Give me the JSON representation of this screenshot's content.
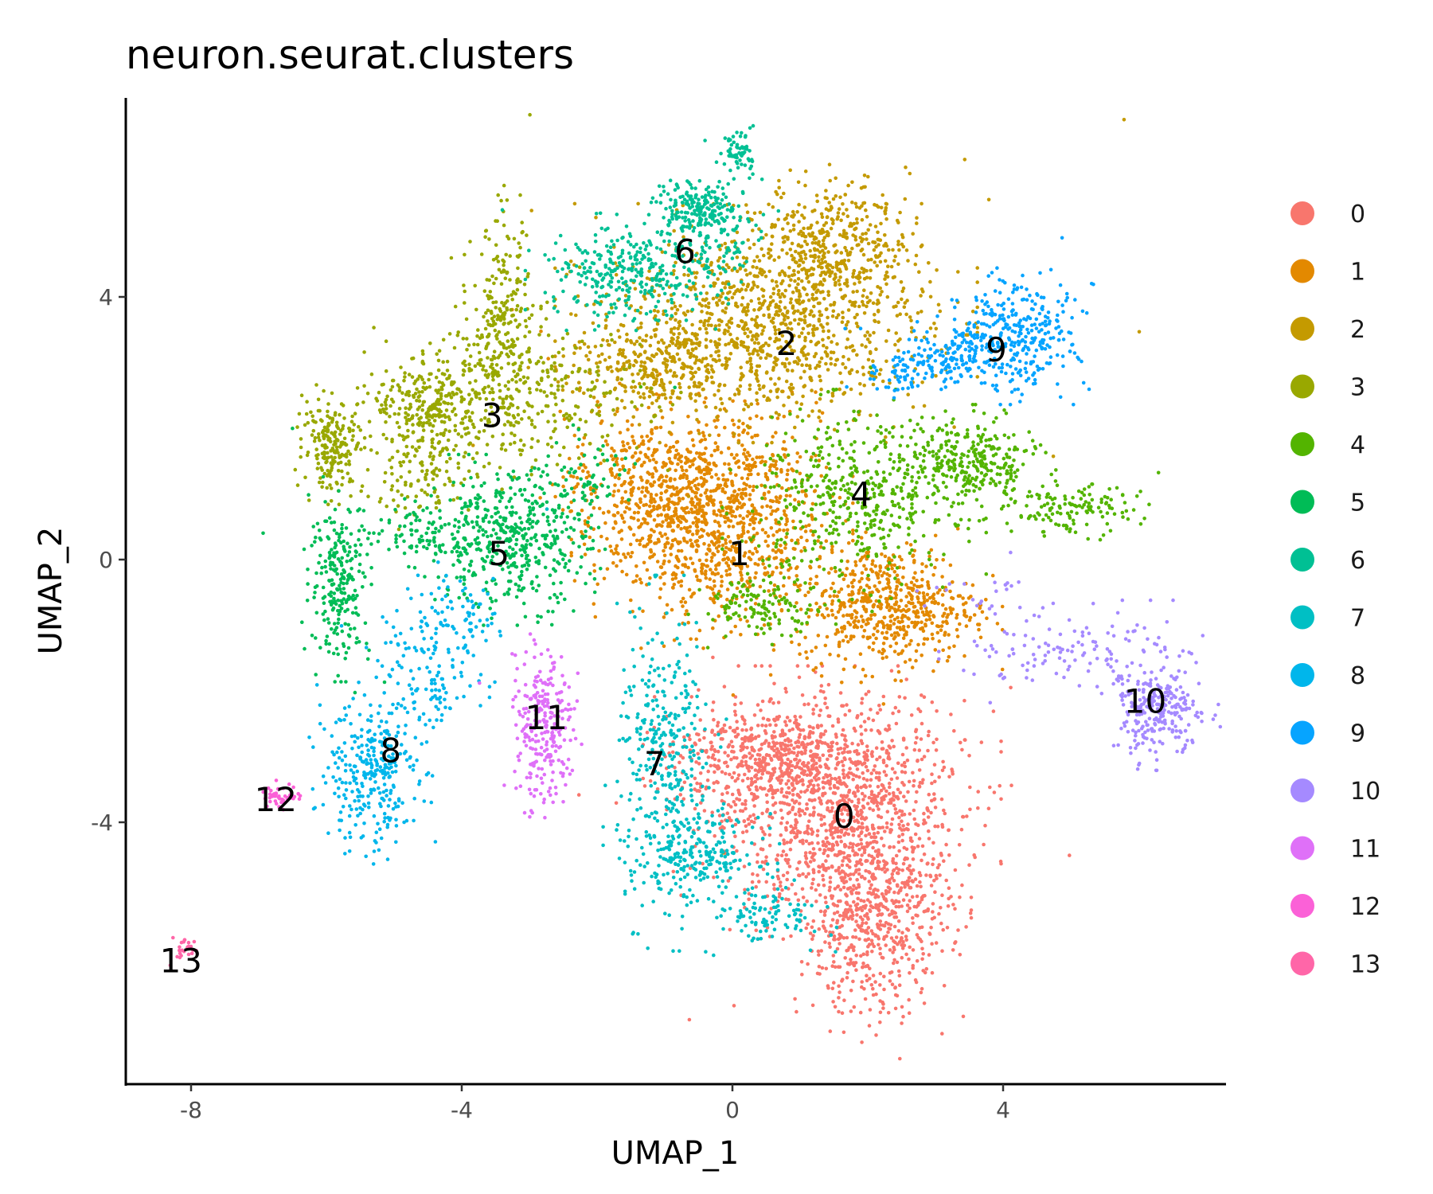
{
  "chart_data": {
    "type": "scatter",
    "title": "neuron.seurat.clusters",
    "xlabel": "UMAP_1",
    "ylabel": "UMAP_2",
    "xlim": [
      -9,
      7.3
    ],
    "ylim": [
      -8.0,
      7.0
    ],
    "x_ticks": [
      -8,
      -4,
      0,
      4
    ],
    "x_tick_labels": [
      "-8",
      "-4",
      "0",
      "4"
    ],
    "y_ticks": [
      4,
      0,
      -4
    ],
    "y_tick_labels": [
      "4",
      "0",
      "-4"
    ],
    "grid": false,
    "legend_position": "right",
    "series": [
      {
        "name": "0",
        "color": "#F8766D",
        "label_pos": [
          1.65,
          -3.9
        ],
        "approx_cells": 2200,
        "blobs": [
          [
            1.5,
            -3.7,
            0.95,
            0.8,
            0.5
          ],
          [
            2.1,
            -5.4,
            0.55,
            0.75,
            0.3
          ],
          [
            0.5,
            -3.0,
            0.7,
            0.35,
            0.2
          ]
        ]
      },
      {
        "name": "1",
        "color": "#E38900",
        "label_pos": [
          0.1,
          0.1
        ],
        "approx_cells": 1900,
        "blobs": [
          [
            -0.3,
            0.6,
            0.8,
            0.75,
            0.55
          ],
          [
            2.3,
            -0.7,
            0.65,
            0.45,
            0.3
          ],
          [
            -1.3,
            1.2,
            0.6,
            0.5,
            0.15
          ]
        ]
      },
      {
        "name": "2",
        "color": "#C49A00",
        "label_pos": [
          0.8,
          3.3
        ],
        "approx_cells": 1700,
        "blobs": [
          [
            0.5,
            3.6,
            1.2,
            0.7,
            0.65
          ],
          [
            1.5,
            4.9,
            0.55,
            0.45,
            0.2
          ],
          [
            -1.2,
            2.9,
            0.6,
            0.35,
            0.15
          ]
        ]
      },
      {
        "name": "3",
        "color": "#99A800",
        "label_pos": [
          -3.55,
          2.2
        ],
        "approx_cells": 1100,
        "blobs": [
          [
            -5.9,
            1.75,
            0.22,
            0.35,
            0.18
          ],
          [
            -4.5,
            2.35,
            0.4,
            0.3,
            0.2
          ],
          [
            -3.4,
            3.6,
            0.22,
            0.75,
            0.2
          ],
          [
            -3.1,
            2.5,
            0.9,
            0.55,
            0.32
          ],
          [
            -4.6,
            1.3,
            0.4,
            0.35,
            0.1
          ]
        ]
      },
      {
        "name": "4",
        "color": "#53B400",
        "label_pos": [
          1.9,
          1.0
        ],
        "approx_cells": 1000,
        "blobs": [
          [
            1.8,
            0.9,
            0.75,
            0.65,
            0.45
          ],
          [
            3.5,
            1.45,
            0.5,
            0.35,
            0.3
          ],
          [
            5.0,
            0.75,
            0.45,
            0.18,
            0.13
          ],
          [
            0.5,
            -0.7,
            0.45,
            0.2,
            0.12
          ]
        ]
      },
      {
        "name": "5",
        "color": "#00BC56",
        "label_pos": [
          -3.45,
          0.1
        ],
        "approx_cells": 850,
        "blobs": [
          [
            -3.3,
            0.3,
            0.6,
            0.5,
            0.55
          ],
          [
            -5.8,
            -0.3,
            0.22,
            0.6,
            0.28
          ],
          [
            -4.6,
            0.4,
            0.45,
            0.22,
            0.1
          ],
          [
            -2.2,
            1.2,
            0.4,
            0.3,
            0.07
          ]
        ]
      },
      {
        "name": "6",
        "color": "#00C094",
        "label_pos": [
          -0.7,
          4.7
        ],
        "approx_cells": 650,
        "blobs": [
          [
            -1.5,
            4.4,
            0.6,
            0.35,
            0.5
          ],
          [
            -0.5,
            5.3,
            0.28,
            0.2,
            0.3
          ],
          [
            0.1,
            6.2,
            0.13,
            0.18,
            0.1
          ],
          [
            -0.1,
            4.8,
            0.3,
            0.4,
            0.1
          ]
        ]
      },
      {
        "name": "7",
        "color": "#00BFC4",
        "label_pos": [
          -1.15,
          -3.1
        ],
        "approx_cells": 650,
        "blobs": [
          [
            -1.0,
            -3.1,
            0.35,
            1.1,
            0.55
          ],
          [
            -0.5,
            -4.5,
            0.45,
            0.3,
            0.3
          ],
          [
            0.5,
            -5.4,
            0.4,
            0.22,
            0.15
          ]
        ]
      },
      {
        "name": "8",
        "color": "#00B6EB",
        "label_pos": [
          -5.05,
          -2.9
        ],
        "approx_cells": 500,
        "blobs": [
          [
            -5.3,
            -3.3,
            0.35,
            0.55,
            0.6
          ],
          [
            -4.5,
            -1.6,
            0.35,
            0.6,
            0.3
          ],
          [
            -3.9,
            -0.8,
            0.25,
            0.3,
            0.1
          ]
        ]
      },
      {
        "name": "9",
        "color": "#06A4FF",
        "label_pos": [
          3.9,
          3.2
        ],
        "approx_cells": 500,
        "blobs": [
          [
            4.2,
            3.4,
            0.45,
            0.4,
            0.65
          ],
          [
            3.2,
            3.1,
            0.35,
            0.2,
            0.25
          ],
          [
            2.5,
            2.8,
            0.25,
            0.13,
            0.1
          ]
        ]
      },
      {
        "name": "10",
        "color": "#A58AFF",
        "label_pos": [
          6.1,
          -2.15
        ],
        "approx_cells": 400,
        "blobs": [
          [
            6.3,
            -2.3,
            0.35,
            0.35,
            0.65
          ],
          [
            5.0,
            -1.4,
            0.75,
            0.3,
            0.3
          ],
          [
            3.9,
            -0.6,
            0.35,
            0.2,
            0.05
          ]
        ]
      },
      {
        "name": "11",
        "color": "#DF70F8",
        "label_pos": [
          -2.75,
          -2.4
        ],
        "approx_cells": 260,
        "blobs": [
          [
            -2.8,
            -2.5,
            0.22,
            0.55,
            1.0
          ]
        ]
      },
      {
        "name": "12",
        "color": "#FB61D7",
        "label_pos": [
          -6.75,
          -3.65
        ],
        "approx_cells": 45,
        "blobs": [
          [
            -6.65,
            -3.6,
            0.15,
            0.08,
            1.0
          ]
        ]
      },
      {
        "name": "13",
        "color": "#FF66A8",
        "label_pos": [
          -8.15,
          -6.1
        ],
        "approx_cells": 25,
        "blobs": [
          [
            -8.1,
            -5.9,
            0.1,
            0.08,
            1.0
          ]
        ]
      }
    ]
  }
}
